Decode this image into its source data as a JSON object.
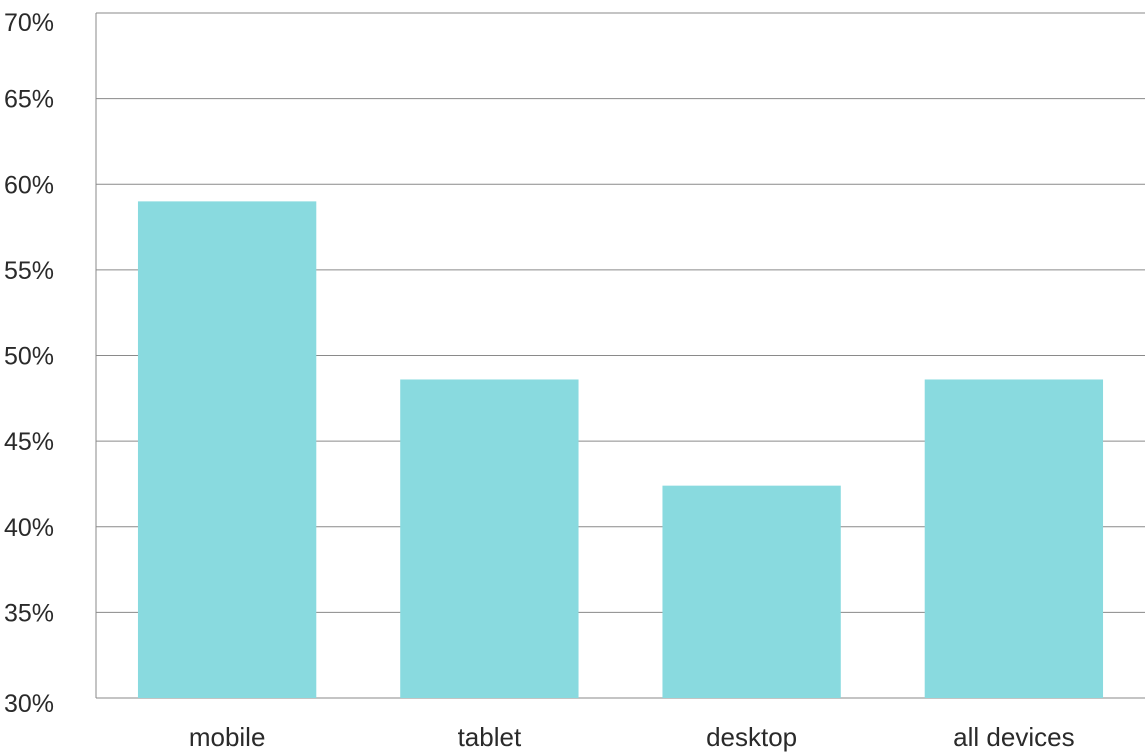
{
  "chart_data": {
    "type": "bar",
    "title": "",
    "xlabel": "",
    "ylabel": "",
    "categories": [
      "mobile",
      "tablet",
      "desktop",
      "all devices"
    ],
    "values": [
      59,
      48.6,
      42.4,
      48.6
    ],
    "ylim": [
      30,
      70
    ],
    "y_ticks": [
      30,
      35,
      40,
      45,
      50,
      55,
      60,
      65,
      70
    ],
    "y_tick_labels": [
      "30%",
      "35%",
      "40%",
      "45%",
      "50%",
      "55%",
      "60%",
      "65%",
      "70%"
    ],
    "grid": true,
    "legend": "none",
    "bar_color": "#89dadf",
    "grid_color": "#8a8a8a",
    "text_color": "#2a2a2a"
  }
}
